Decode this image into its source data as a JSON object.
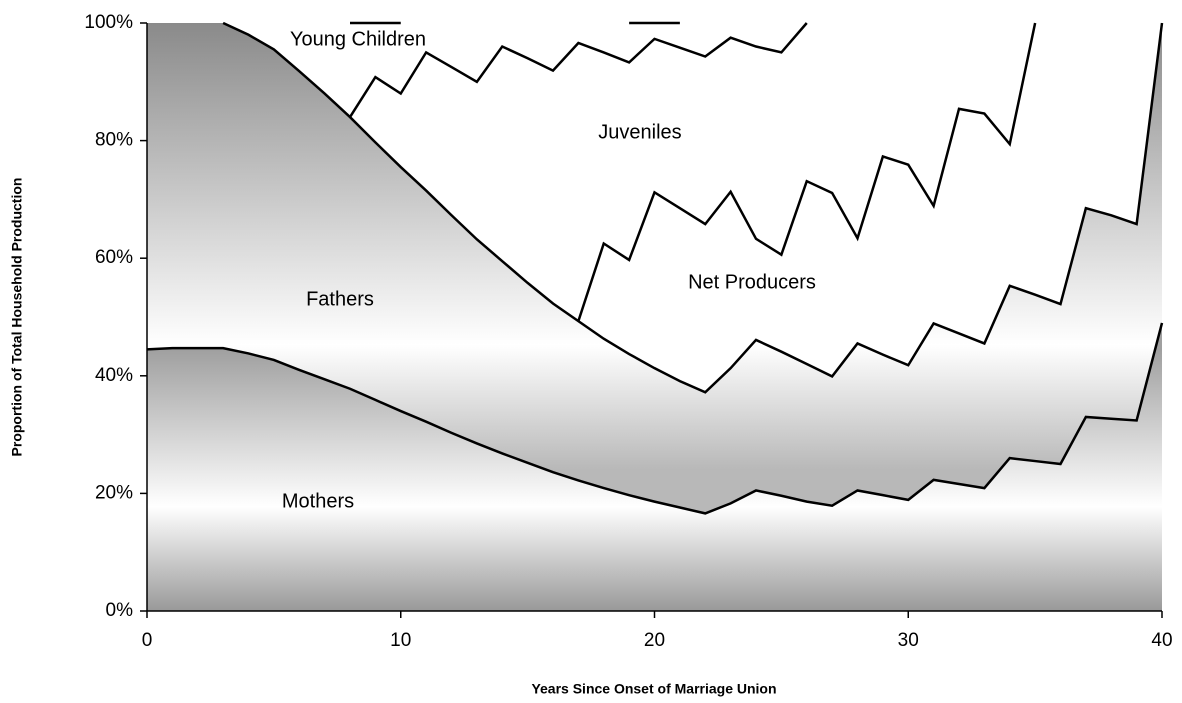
{
  "chart_data": {
    "type": "area",
    "stacked": true,
    "xlabel": "Years Since Onset of Marriage Union",
    "ylabel": "Proportion of Total Household Production",
    "x": [
      0,
      1,
      2,
      3,
      4,
      5,
      6,
      7,
      8,
      9,
      10,
      11,
      12,
      13,
      14,
      15,
      16,
      17,
      18,
      19,
      20,
      21,
      22,
      23,
      24,
      25,
      26,
      27,
      28,
      29,
      30,
      31,
      32,
      33,
      34,
      35,
      36,
      37,
      38,
      39,
      40
    ],
    "xlim": [
      0,
      40
    ],
    "xticks": [
      0,
      10,
      20,
      30,
      40
    ],
    "ylim": [
      0,
      100
    ],
    "yticks": [
      {
        "value": 0,
        "label": "0%"
      },
      {
        "value": 20,
        "label": "20%"
      },
      {
        "value": 40,
        "label": "40%"
      },
      {
        "value": 60,
        "label": "60%"
      },
      {
        "value": 80,
        "label": "80%"
      },
      {
        "value": 100,
        "label": "100%"
      }
    ],
    "series": [
      {
        "name": "Mothers",
        "color": "#a0a0a0",
        "values": [
          44.5,
          44.7,
          44.7,
          44.7,
          43.8,
          42.7,
          41,
          39.4,
          37.8,
          35.9,
          34,
          32.2,
          30.3,
          28.5,
          26.8,
          25.2,
          23.6,
          22.2,
          20.9,
          19.7,
          18.6,
          17.6,
          16.6,
          18.3,
          20.5,
          19.6,
          18.6,
          17.9,
          20.5,
          19.7,
          18.9,
          22.3,
          21.6,
          20.9,
          26,
          25.5,
          25,
          33,
          32.7,
          32.4,
          49
        ]
      },
      {
        "name": "Fathers",
        "color": "#8a8a8a",
        "values": [
          55.5,
          55.3,
          55.3,
          55.3,
          54.2,
          52.8,
          50.8,
          48.6,
          46.2,
          43.8,
          41.5,
          39.3,
          37,
          34.7,
          32.7,
          30.6,
          28.7,
          27.1,
          25.4,
          24,
          22.7,
          21.5,
          20.6,
          23,
          25.6,
          24.5,
          23.4,
          22,
          25,
          23.9,
          22.9,
          26.6,
          25.6,
          24.6,
          29.3,
          28.3,
          27.2,
          35.5,
          34.6,
          33.4,
          51
        ]
      },
      {
        "name": "Net Producers",
        "color": "#ffffff",
        "values": [
          0,
          0,
          0,
          0,
          0,
          0,
          0,
          0,
          0,
          0,
          0,
          0,
          0,
          0,
          0,
          0,
          0,
          0,
          16.2,
          16,
          29.9,
          29.4,
          28.6,
          30,
          17.2,
          16.5,
          31.1,
          31.2,
          17.9,
          33.7,
          34.1,
          20,
          38.2,
          39.1,
          24.1,
          46.2,
          47.8,
          31.5,
          32.7,
          34.2,
          0
        ]
      },
      {
        "name": "Juveniles",
        "color": "#ffffff",
        "values": [
          0,
          0,
          0,
          0,
          0,
          0,
          0,
          0,
          0,
          11.1,
          12.5,
          23.5,
          25.2,
          26.8,
          36.5,
          38.2,
          39.6,
          47.3,
          32.5,
          33.6,
          26.1,
          27.3,
          28.5,
          26.2,
          32.7,
          34.4,
          26.9,
          28.9,
          36.6,
          22.7,
          24.1,
          31.1,
          14.6,
          15.4,
          20.6,
          0,
          0,
          0,
          0,
          0,
          0
        ]
      },
      {
        "name": "Young Children",
        "color": "#ffffff",
        "values": [
          0,
          0,
          0,
          0,
          2,
          4.5,
          8.2,
          12,
          16,
          9.2,
          12,
          5,
          7.5,
          10,
          4,
          6,
          8.1,
          3.4,
          5,
          6.7,
          2.7,
          4.2,
          5.7,
          2.5,
          4,
          5,
          0,
          0,
          0,
          0,
          0,
          0,
          0,
          0,
          0,
          0,
          0,
          0,
          0,
          0,
          0
        ]
      }
    ]
  }
}
